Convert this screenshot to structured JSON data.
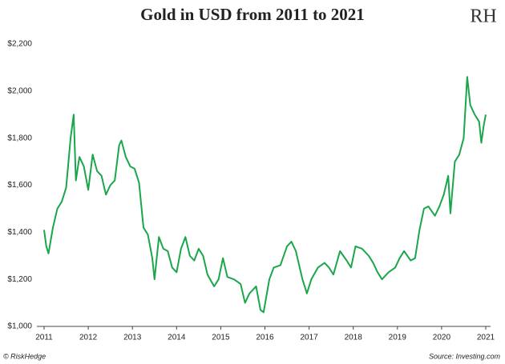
{
  "chart_data": {
    "type": "line",
    "title": "Gold in USD from 2011 to 2021",
    "logo": "RH",
    "credit": "© RiskHedge",
    "source": "Source: Investing.com",
    "color": "#1aa64a",
    "x": [
      2011.0,
      2011.05,
      2011.1,
      2011.2,
      2011.3,
      2011.4,
      2011.5,
      2011.6,
      2011.67,
      2011.72,
      2011.8,
      2011.9,
      2012.0,
      2012.1,
      2012.2,
      2012.3,
      2012.4,
      2012.5,
      2012.6,
      2012.7,
      2012.75,
      2012.85,
      2012.95,
      2013.05,
      2013.15,
      2013.25,
      2013.35,
      2013.45,
      2013.5,
      2013.6,
      2013.7,
      2013.8,
      2013.9,
      2014.0,
      2014.1,
      2014.2,
      2014.3,
      2014.4,
      2014.5,
      2014.6,
      2014.7,
      2014.85,
      2014.95,
      2015.05,
      2015.15,
      2015.3,
      2015.45,
      2015.55,
      2015.65,
      2015.8,
      2015.9,
      2015.97,
      2016.1,
      2016.2,
      2016.35,
      2016.5,
      2016.6,
      2016.7,
      2016.85,
      2016.95,
      2017.05,
      2017.2,
      2017.35,
      2017.45,
      2017.55,
      2017.7,
      2017.85,
      2017.95,
      2018.05,
      2018.2,
      2018.35,
      2018.45,
      2018.55,
      2018.65,
      2018.8,
      2018.95,
      2019.05,
      2019.15,
      2019.3,
      2019.4,
      2019.5,
      2019.6,
      2019.7,
      2019.85,
      2019.95,
      2020.05,
      2020.15,
      2020.2,
      2020.3,
      2020.4,
      2020.5,
      2020.58,
      2020.65,
      2020.75,
      2020.85,
      2020.9,
      2020.95,
      2021.0
    ],
    "values": [
      1410,
      1340,
      1310,
      1420,
      1500,
      1530,
      1590,
      1800,
      1900,
      1620,
      1720,
      1680,
      1580,
      1730,
      1660,
      1640,
      1560,
      1600,
      1620,
      1770,
      1790,
      1720,
      1680,
      1670,
      1610,
      1420,
      1390,
      1290,
      1200,
      1380,
      1330,
      1320,
      1250,
      1230,
      1330,
      1380,
      1300,
      1280,
      1330,
      1300,
      1220,
      1170,
      1200,
      1290,
      1210,
      1200,
      1180,
      1100,
      1140,
      1170,
      1070,
      1060,
      1200,
      1250,
      1260,
      1340,
      1360,
      1320,
      1200,
      1140,
      1200,
      1250,
      1270,
      1250,
      1220,
      1320,
      1280,
      1250,
      1340,
      1330,
      1300,
      1270,
      1230,
      1200,
      1230,
      1250,
      1290,
      1320,
      1280,
      1290,
      1410,
      1500,
      1510,
      1470,
      1510,
      1560,
      1640,
      1480,
      1700,
      1730,
      1800,
      2060,
      1940,
      1900,
      1870,
      1780,
      1850,
      1900
    ],
    "xlim": [
      2011,
      2021.1
    ],
    "xticks": [
      2011,
      2012,
      2013,
      2014,
      2015,
      2016,
      2017,
      2018,
      2019,
      2020,
      2021
    ],
    "ylim": [
      1000,
      2200
    ],
    "yticks": [
      {
        "value": 1000,
        "label": "$1,000"
      },
      {
        "value": 1200,
        "label": "$1,200"
      },
      {
        "value": 1400,
        "label": "$1,400"
      },
      {
        "value": 1600,
        "label": "$1,600"
      },
      {
        "value": 1800,
        "label": "$1,800"
      },
      {
        "value": 2000,
        "label": "$2,000"
      },
      {
        "value": 2200,
        "label": "$2,200"
      }
    ],
    "grid": false
  }
}
